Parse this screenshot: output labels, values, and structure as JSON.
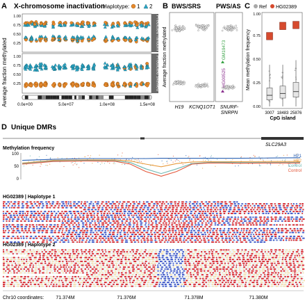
{
  "colors": {
    "orange": "#e8892b",
    "teal": "#29a6c6",
    "red": "#d7282f",
    "blue": "#3b55c7",
    "cream": "#f5dfb0",
    "gray_box": "#9a9a9a",
    "hg_red": "#d64a2e",
    "hp1_blue": "#2e64b4",
    "hp2_orange": "#e89a3c",
    "control_teal": "#6fb8b0",
    "control_red": "#e3573a",
    "green": "#3aa346",
    "purple": "#8a2f8e"
  },
  "panels": {
    "a": {
      "letter": "A",
      "title": "X-chromosome inactivation",
      "legend_label": "Haplotype:",
      "legend_1": "1",
      "legend_2": "2",
      "strip_top": "Predicted random",
      "strip_bottom": "Predicted skewed",
      "ylabel": "Average fraction methylated",
      "yticks": [
        "0.25",
        "0.50",
        "0.75",
        "1.00"
      ],
      "xticks": [
        "0.0e+00",
        "5.0e+07",
        "1.0e+08",
        "1.5e+08"
      ]
    },
    "b": {
      "letter": "B",
      "title_left": "BWS/SRS",
      "title_right": "PWS/AS",
      "ylabel": "Average fraction methylated",
      "xlabels": [
        "H19",
        "KCNQ1OT1",
        "SNURF-",
        "SNRPN"
      ],
      "annot_1": "GM19473",
      "annot_2": "HG00525"
    },
    "c": {
      "letter": "C",
      "ylabel": "Mean methylation frequency",
      "legend_ref": "Ref",
      "legend_hg": "HG02389",
      "yticks": [
        "0.00",
        "0.25",
        "0.50",
        "0.75",
        "1.00"
      ],
      "xticks": [
        "3007",
        "18483",
        "25876"
      ],
      "xlabel": "CpG island"
    },
    "d": {
      "letter": "D",
      "title": "Unique DMRs",
      "gene": "SLC29A3",
      "track_title": "Methylation frequency",
      "track_yticks": [
        "0",
        "50",
        "100"
      ],
      "legend": [
        "HP1",
        "HP2",
        "Control",
        "Control"
      ],
      "hap1_label": "HG02389  |  Haplotype 1",
      "hap2_label": "HG02389  |  Haplotype 2",
      "coord_label": "Chr10 coordinates:",
      "coord_ticks": [
        "71.374M",
        "71.376M",
        "71.378M",
        "71.380M"
      ]
    }
  },
  "chart_data": [
    {
      "type": "scatter",
      "panel": "A",
      "title": "X-chromosome inactivation",
      "ylabel": "Average fraction methylated",
      "xlim": [
        0,
        155000000
      ],
      "ylim": [
        0,
        1
      ],
      "series": [
        {
          "name": "1"
        },
        {
          "name": "2"
        }
      ],
      "facets": [
        "Predicted random",
        "Predicted skewed"
      ]
    },
    {
      "type": "scatter",
      "panel": "B",
      "ylabel": "Average fraction methylated",
      "categories": [
        "H19",
        "KCNQ1OT1",
        "SNURF-SNRPN"
      ],
      "high_cluster_mean": [
        0.83,
        0.85,
        0.83
      ],
      "low_cluster_mean": [
        0.2,
        0.17,
        0.15
      ],
      "annotations": [
        {
          "label": "GM19473",
          "value": 0.57
        },
        {
          "label": "HG00525",
          "value": 0.28
        }
      ]
    },
    {
      "type": "box",
      "panel": "C",
      "ylabel": "Mean methylation frequency",
      "xlabel": "CpG island",
      "categories": [
        "3007",
        "18483",
        "25876"
      ],
      "ylim": [
        0,
        1
      ],
      "series": [
        {
          "name": "Ref",
          "median": [
            0.12,
            0.14,
            0.16
          ],
          "q1": [
            0.07,
            0.09,
            0.1
          ],
          "q3": [
            0.2,
            0.22,
            0.26
          ],
          "min": [
            0.0,
            0.0,
            0.0
          ],
          "max": [
            0.45,
            0.45,
            0.5
          ]
        },
        {
          "name": "HG02389",
          "values": [
            0.76,
            0.87,
            0.88
          ]
        }
      ]
    },
    {
      "type": "line",
      "panel": "D",
      "title": "Methylation frequency",
      "ylim": [
        0,
        100
      ],
      "xlim": [
        71373000,
        71382000
      ],
      "x": [
        71373000,
        71374000,
        71375000,
        71376000,
        71376500,
        71377000,
        71377500,
        71378000,
        71378500,
        71379000,
        71379500,
        71380000,
        71381000,
        71382000
      ],
      "series": [
        {
          "name": "HP1",
          "values": [
            72,
            76,
            79,
            79,
            79,
            79,
            80,
            80,
            80,
            80,
            80,
            80,
            81,
            82
          ]
        },
        {
          "name": "HP2",
          "values": [
            62,
            72,
            74,
            74,
            70,
            58,
            48,
            60,
            66,
            67,
            67,
            67,
            68,
            68
          ]
        },
        {
          "name": "Control",
          "values": [
            60,
            70,
            72,
            71,
            64,
            40,
            22,
            40,
            60,
            64,
            65,
            64,
            64,
            64
          ]
        },
        {
          "name": "Control",
          "values": [
            58,
            68,
            70,
            69,
            58,
            30,
            12,
            30,
            58,
            62,
            62,
            61,
            62,
            62
          ]
        }
      ]
    }
  ]
}
